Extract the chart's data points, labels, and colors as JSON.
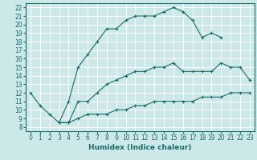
{
  "xlabel": "Humidex (Indice chaleur)",
  "ylabel": "",
  "xlim": [
    -0.5,
    23.5
  ],
  "ylim": [
    7.5,
    22.5
  ],
  "yticks": [
    8,
    9,
    10,
    11,
    12,
    13,
    14,
    15,
    16,
    17,
    18,
    19,
    20,
    21,
    22
  ],
  "xticks": [
    0,
    1,
    2,
    3,
    4,
    5,
    6,
    7,
    8,
    9,
    10,
    11,
    12,
    13,
    14,
    15,
    16,
    17,
    18,
    19,
    20,
    21,
    22,
    23
  ],
  "bg_color": "#cce8e8",
  "grid_color": "#ffffff",
  "line_color": "#1a6b6b",
  "line1_x": [
    0,
    1,
    2,
    3,
    4,
    5,
    6,
    7,
    8,
    9,
    10,
    11,
    12,
    13,
    14,
    15,
    16,
    17,
    18,
    19,
    20
  ],
  "line1_y": [
    12,
    10.5,
    9.5,
    8.5,
    11.0,
    15.0,
    16.5,
    18.0,
    19.5,
    19.5,
    20.5,
    21.0,
    21.0,
    21.0,
    21.5,
    22.0,
    21.5,
    20.5,
    18.5,
    19.0,
    18.5
  ],
  "line2_x": [
    3,
    4,
    5,
    6,
    7,
    8,
    9,
    10,
    11,
    12,
    13,
    14,
    15,
    16,
    17,
    18,
    19,
    20,
    21,
    22,
    23
  ],
  "line2_y": [
    8.5,
    8.5,
    11.0,
    11.0,
    12.0,
    13.0,
    13.5,
    14.0,
    14.5,
    14.5,
    15.0,
    15.0,
    15.5,
    14.5,
    14.5,
    14.5,
    14.5,
    15.5,
    15.0,
    15.0,
    13.5
  ],
  "line3_x": [
    3,
    4,
    5,
    6,
    7,
    8,
    9,
    10,
    11,
    12,
    13,
    14,
    15,
    16,
    17,
    18,
    19,
    20,
    21,
    22,
    23
  ],
  "line3_y": [
    8.5,
    8.5,
    9.0,
    9.5,
    9.5,
    9.5,
    10.0,
    10.0,
    10.5,
    10.5,
    11.0,
    11.0,
    11.0,
    11.0,
    11.0,
    11.5,
    11.5,
    11.5,
    12.0,
    12.0,
    12.0
  ],
  "tick_fontsize": 5.5,
  "xlabel_fontsize": 6.5
}
